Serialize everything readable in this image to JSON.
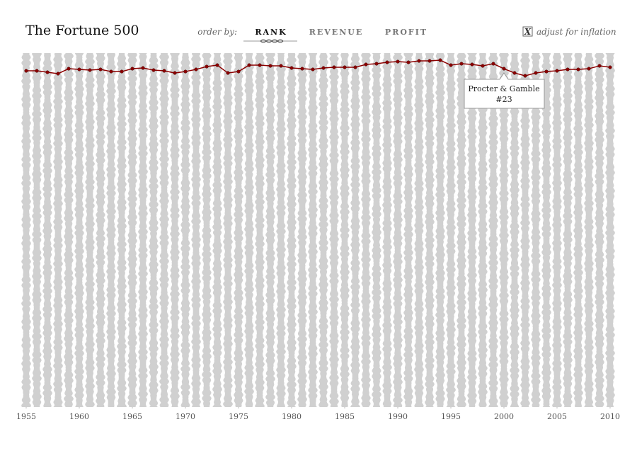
{
  "ui": {
    "title": "The Fortune 500",
    "order_by_label": "order by:",
    "order_options": [
      "RANK",
      "REVENUE",
      "PROFIT"
    ],
    "inflation_checkbox": "X",
    "inflation_label": "adjust for inflation"
  },
  "chart_data": {
    "type": "line",
    "x": [
      1955,
      1956,
      1957,
      1958,
      1959,
      1960,
      1961,
      1962,
      1963,
      1964,
      1965,
      1966,
      1967,
      1968,
      1969,
      1970,
      1971,
      1972,
      1973,
      1974,
      1975,
      1976,
      1977,
      1978,
      1979,
      1980,
      1981,
      1982,
      1983,
      1984,
      1985,
      1986,
      1987,
      1988,
      1989,
      1990,
      1991,
      1992,
      1993,
      1994,
      1995,
      1996,
      1997,
      1998,
      1999,
      2000,
      2001,
      2002,
      2003,
      2004,
      2005,
      2006,
      2007,
      2008,
      2009,
      2010
    ],
    "series": [
      {
        "name": "Procter & Gamble",
        "color": "#8b0000",
        "values": [
          26,
          26,
          28,
          30,
          23,
          24,
          25,
          24,
          27,
          27,
          23,
          22,
          25,
          26,
          29,
          27,
          24,
          20,
          18,
          29,
          27,
          18,
          18,
          19,
          19,
          22,
          23,
          24,
          22,
          21,
          21,
          21,
          17,
          16,
          14,
          13,
          14,
          12,
          12,
          11,
          18,
          16,
          17,
          19,
          16,
          23,
          29,
          33,
          29,
          27,
          26,
          24,
          24,
          23,
          19,
          21
        ]
      }
    ],
    "tooltip": {
      "year_index": 45,
      "label": "#23"
    },
    "xlim": [
      1955,
      2010
    ],
    "xticks": [
      1955,
      1960,
      1965,
      1970,
      1975,
      1980,
      1985,
      1990,
      1995,
      2000,
      2005,
      2010
    ],
    "ylim": [
      500,
      1
    ]
  }
}
